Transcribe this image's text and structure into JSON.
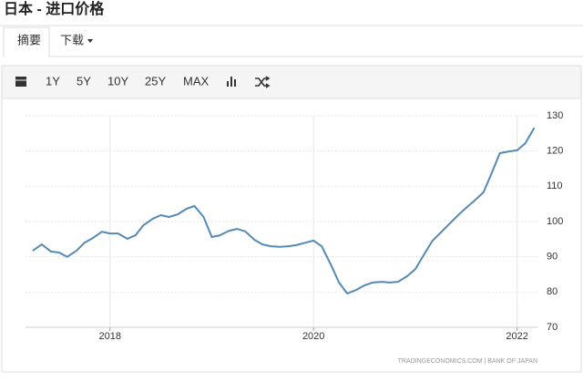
{
  "header": {
    "title": "日本 - 进口价格"
  },
  "tabs": [
    "摘要",
    "下载"
  ],
  "toolbar": [
    "1Y",
    "5Y",
    "10Y",
    "25Y",
    "MAX"
  ],
  "chart_data": {
    "type": "line",
    "x": [
      2017.24,
      2017.33,
      2017.42,
      2017.5,
      2017.58,
      2017.67,
      2017.75,
      2017.83,
      2017.92,
      2018.0,
      2018.08,
      2018.17,
      2018.25,
      2018.33,
      2018.42,
      2018.5,
      2018.58,
      2018.67,
      2018.75,
      2018.83,
      2018.92,
      2019.0,
      2019.08,
      2019.17,
      2019.25,
      2019.33,
      2019.42,
      2019.5,
      2019.58,
      2019.67,
      2019.75,
      2019.83,
      2019.92,
      2020.0,
      2020.08,
      2020.17,
      2020.25,
      2020.33,
      2020.42,
      2020.5,
      2020.58,
      2020.67,
      2020.75,
      2020.83,
      2020.92,
      2021.0,
      2021.08,
      2021.17,
      2021.25,
      2021.33,
      2021.42,
      2021.5,
      2021.58,
      2021.67,
      2021.75,
      2021.83,
      2021.92,
      2022.0,
      2022.08,
      2022.17
    ],
    "series": [
      {
        "color": "#5589b6",
        "values": [
          91.7,
          93.5,
          91.5,
          91.2,
          90.0,
          91.7,
          94.0,
          95.3,
          97.1,
          96.6,
          96.6,
          95.1,
          96.1,
          99.0,
          100.8,
          101.8,
          101.3,
          102.1,
          103.6,
          104.4,
          101.3,
          95.6,
          96.1,
          97.4,
          97.9,
          97.2,
          94.8,
          93.5,
          93.0,
          92.8,
          93.0,
          93.3,
          94.0,
          94.6,
          93.0,
          87.8,
          82.7,
          79.6,
          80.6,
          81.9,
          82.7,
          82.9,
          82.7,
          82.9,
          84.5,
          86.5,
          90.4,
          94.6,
          96.9,
          99.2,
          101.8,
          103.9,
          105.9,
          108.3,
          113.7,
          119.4,
          119.9,
          120.2,
          122.2,
          126.6
        ]
      }
    ],
    "xlim": [
      2017.17,
      2022.2
    ],
    "xticks": [
      2018,
      2020,
      2022
    ],
    "ylim": [
      70,
      130
    ],
    "yticks": [
      70,
      80,
      90,
      100,
      110,
      120,
      130
    ],
    "grid": true,
    "source": "TRADINGECONOMICS.COM | BANK OF JAPAN"
  }
}
